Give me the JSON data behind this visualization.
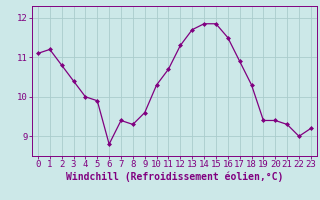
{
  "x": [
    0,
    1,
    2,
    3,
    4,
    5,
    6,
    7,
    8,
    9,
    10,
    11,
    12,
    13,
    14,
    15,
    16,
    17,
    18,
    19,
    20,
    21,
    22,
    23
  ],
  "y": [
    11.1,
    11.2,
    10.8,
    10.4,
    10.0,
    9.9,
    8.8,
    9.4,
    9.3,
    9.6,
    10.3,
    10.7,
    11.3,
    11.7,
    11.85,
    11.85,
    11.5,
    10.9,
    10.3,
    9.4,
    9.4,
    9.3,
    9.0,
    9.2
  ],
  "line_color": "#800080",
  "marker": "D",
  "marker_size": 2,
  "bg_color": "#cce8e8",
  "grid_color": "#aacccc",
  "axis_color": "#800080",
  "xlabel": "Windchill (Refroidissement éolien,°C)",
  "xlim": [
    -0.5,
    23.5
  ],
  "ylim": [
    8.5,
    12.3
  ],
  "yticks": [
    9,
    10,
    11,
    12
  ],
  "xtick_labels": [
    "0",
    "1",
    "2",
    "3",
    "4",
    "5",
    "6",
    "7",
    "8",
    "9",
    "10",
    "11",
    "12",
    "13",
    "14",
    "15",
    "16",
    "17",
    "18",
    "19",
    "20",
    "21",
    "22",
    "23"
  ],
  "xlabel_fontsize": 7,
  "tick_fontsize": 6.5,
  "spine_color": "#800080"
}
